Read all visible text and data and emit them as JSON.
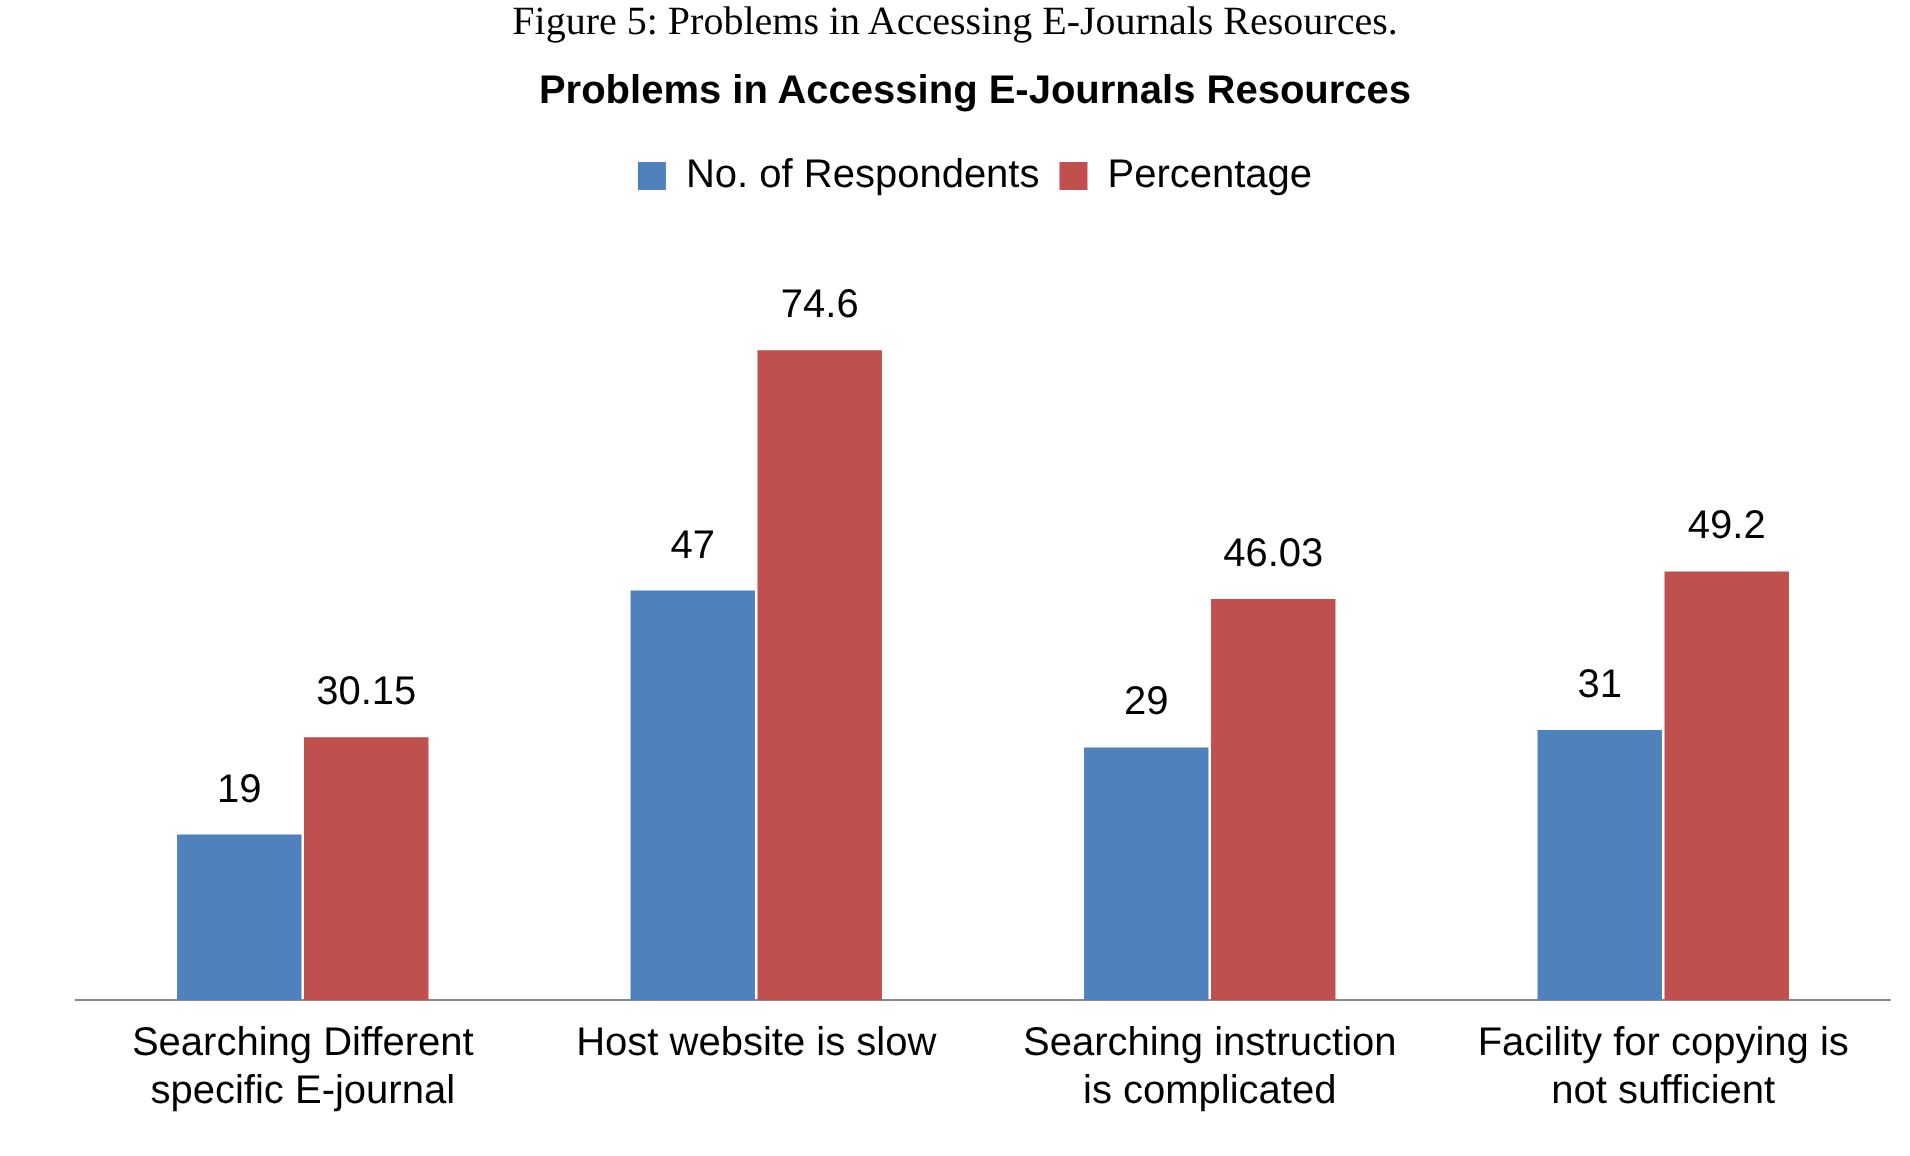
{
  "chart_data": {
    "type": "bar",
    "title": "Problems in Accessing E-Journals Resources",
    "annotations": [
      "Figure 5: Problems in Accessing E-Journals Resources."
    ],
    "categories": [
      "Searching Different specific E-journal",
      "Host website is slow",
      "Searching instruction is complicated",
      "Facility for copying is not sufficient"
    ],
    "series": [
      {
        "name": "No. of Respondents",
        "color": "#4f81bd",
        "values": [
          19,
          47,
          29,
          31
        ]
      },
      {
        "name": "Percentage",
        "color": "#c0504d",
        "values": [
          30.15,
          74.6,
          46.03,
          49.2
        ]
      }
    ],
    "relative": false,
    "data_labels": true,
    "legend": "top",
    "grid": false
  }
}
